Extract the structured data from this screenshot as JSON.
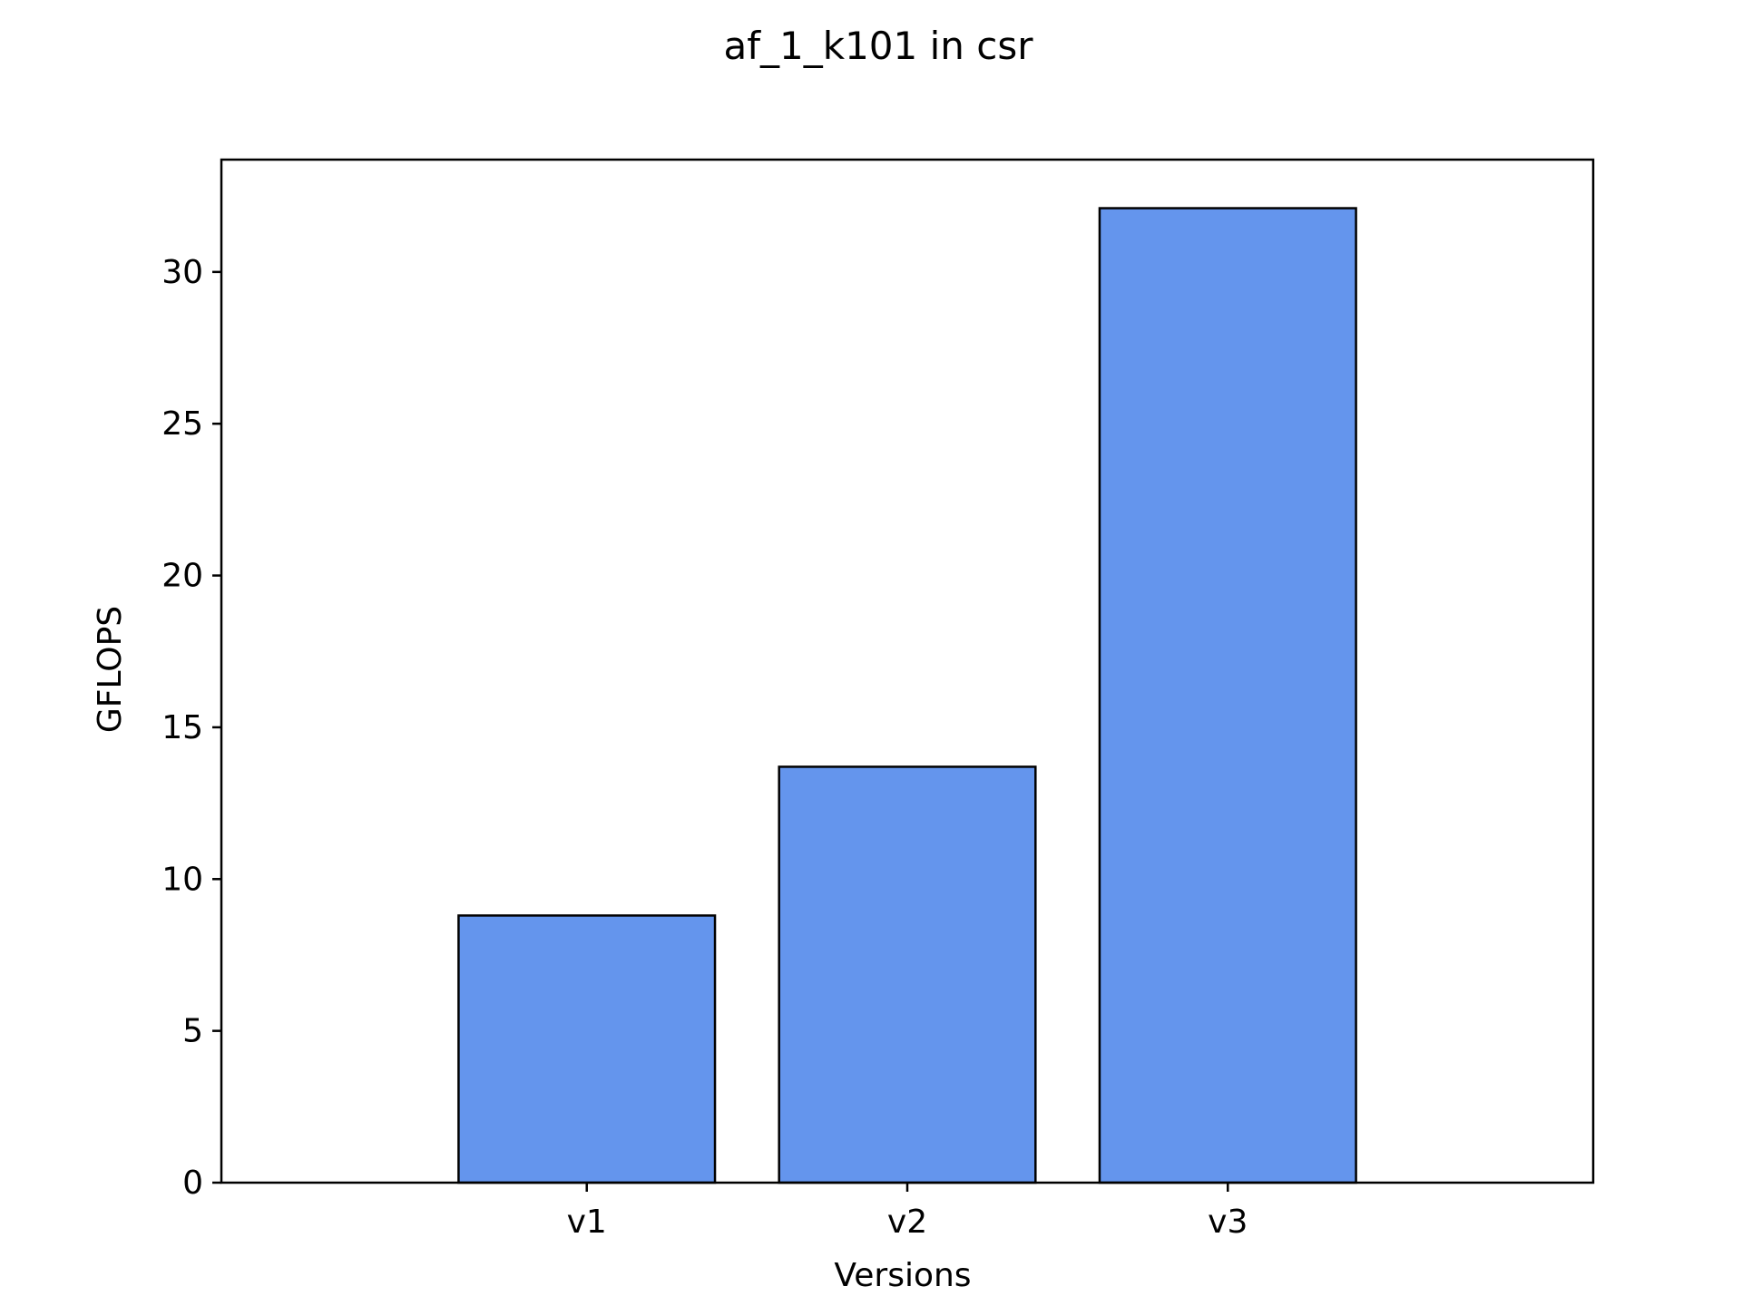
{
  "chart_data": {
    "type": "bar",
    "title": "af_1_k101 in csr",
    "xlabel": "Versions",
    "ylabel": "GFLOPS",
    "categories": [
      "v1",
      "v2",
      "v3"
    ],
    "values": [
      8.8,
      13.7,
      32.1
    ],
    "ylim": [
      0,
      33.7
    ],
    "yticks": [
      0,
      5,
      10,
      15,
      20,
      25,
      30
    ],
    "bar_color": "#6495ED",
    "bar_edge_color": "#000000",
    "grid": false,
    "legend": "none"
  }
}
